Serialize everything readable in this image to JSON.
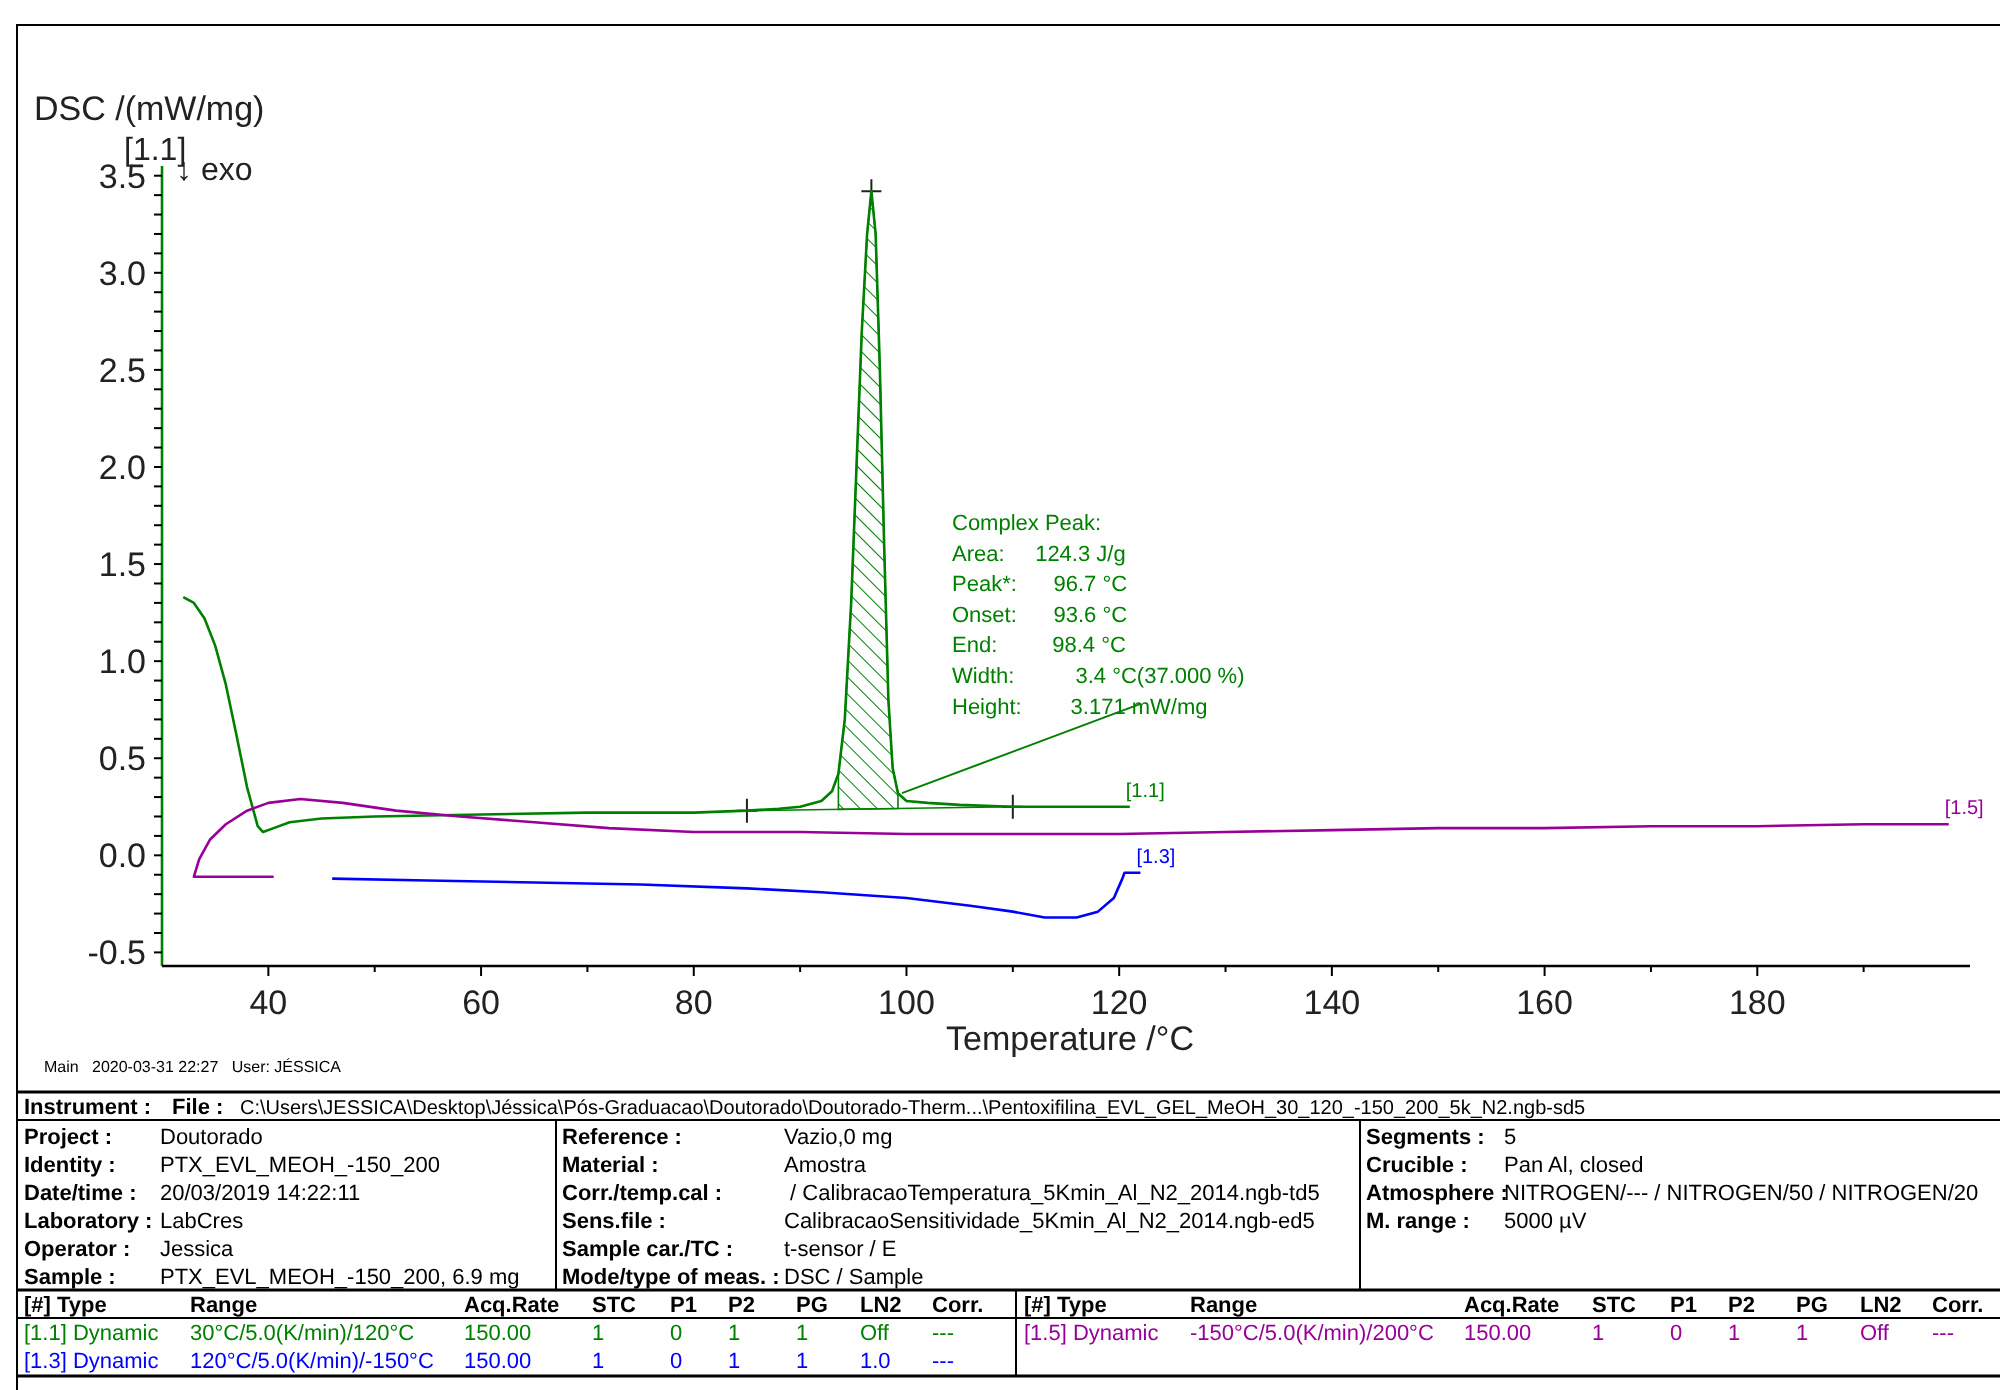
{
  "chart_data": {
    "type": "line",
    "xlabel": "Temperature /°C",
    "ylabel": "DSC /(mW/mg)",
    "xlim": [
      30,
      200
    ],
    "ylim": [
      -0.57,
      3.55
    ],
    "xticks": [
      40,
      {
        "value": 50,
        "label": null
      },
      60,
      {
        "value": 70,
        "label": null
      },
      80,
      {
        "value": 90,
        "label": null
      },
      100,
      {
        "value": 110,
        "label": null
      },
      120,
      {
        "value": 130,
        "label": null
      },
      140,
      {
        "value": 150,
        "label": null
      },
      160,
      {
        "value": 170,
        "label": null
      },
      180,
      {
        "value": 190,
        "label": null
      }
    ],
    "yticks": [
      -0.5,
      {
        "value": -0.4,
        "label": null
      },
      {
        "value": -0.3,
        "label": null
      },
      {
        "value": -0.2,
        "label": null
      },
      {
        "value": -0.1,
        "label": null
      },
      {
        "value": 0,
        "label": "0.0"
      },
      {
        "value": 0.1,
        "label": null
      },
      {
        "value": 0.2,
        "label": null
      },
      {
        "value": 0.3,
        "label": null
      },
      {
        "value": 0.4,
        "label": null
      },
      0.5,
      {
        "value": 0.6,
        "label": null
      },
      {
        "value": 0.7,
        "label": null
      },
      {
        "value": 0.8,
        "label": null
      },
      {
        "value": 0.9,
        "label": null
      },
      {
        "value": 1,
        "label": "1.0"
      },
      {
        "value": 1.1,
        "label": null
      },
      {
        "value": 1.2,
        "label": null
      },
      {
        "value": 1.3,
        "label": null
      },
      {
        "value": 1.4,
        "label": null
      },
      1.5,
      {
        "value": 1.6,
        "label": null
      },
      {
        "value": 1.7,
        "label": null
      },
      {
        "value": 1.8,
        "label": null
      },
      {
        "value": 1.9,
        "label": null
      },
      {
        "value": 2,
        "label": "2.0"
      },
      {
        "value": 2.1,
        "label": null
      },
      {
        "value": 2.2,
        "label": null
      },
      {
        "value": 2.3,
        "label": null
      },
      {
        "value": 2.4,
        "label": null
      },
      2.5,
      {
        "value": 2.6,
        "label": null
      },
      {
        "value": 2.7,
        "label": null
      },
      {
        "value": 2.8,
        "label": null
      },
      {
        "value": 2.9,
        "label": null
      },
      {
        "value": 3,
        "label": "3.0"
      },
      {
        "value": 3.1,
        "label": null
      },
      {
        "value": 3.2,
        "label": null
      },
      {
        "value": 3.3,
        "label": null
      },
      {
        "value": 3.4,
        "label": null
      },
      3.5
    ],
    "legend": false,
    "marker": "none",
    "line_style": "solid",
    "series": [
      {
        "name": "[1.1]",
        "color": "#008000",
        "x": [
          32,
          33,
          34,
          35,
          36,
          37,
          38,
          39,
          39.5,
          40.5,
          42,
          45,
          50,
          60,
          70,
          80,
          85,
          88,
          90,
          92,
          93,
          93.6,
          94.2,
          94.8,
          95.3,
          95.8,
          96.3,
          96.7,
          97.1,
          97.5,
          97.9,
          98.3,
          98.7,
          99.2,
          100,
          102,
          105,
          110,
          115,
          121
        ],
        "values": [
          1.33,
          1.3,
          1.22,
          1.08,
          0.88,
          0.62,
          0.35,
          0.15,
          0.12,
          0.14,
          0.17,
          0.19,
          0.2,
          0.21,
          0.22,
          0.22,
          0.23,
          0.24,
          0.25,
          0.28,
          0.33,
          0.42,
          0.7,
          1.3,
          2.0,
          2.7,
          3.2,
          3.42,
          3.2,
          2.5,
          1.6,
          0.8,
          0.45,
          0.32,
          0.28,
          0.27,
          0.26,
          0.25,
          0.25,
          0.25
        ]
      },
      {
        "name": "[1.3]",
        "color": "#0000ff",
        "x": [
          46,
          55,
          65,
          75,
          85,
          92,
          100,
          106,
          110,
          113,
          116,
          118,
          119.5,
          120.3,
          120.5,
          122
        ],
        "values": [
          -0.12,
          -0.13,
          -0.14,
          -0.15,
          -0.17,
          -0.19,
          -0.22,
          -0.26,
          -0.29,
          -0.32,
          -0.32,
          -0.29,
          -0.22,
          -0.12,
          -0.09,
          -0.09
        ]
      },
      {
        "name": "[1.5]",
        "color": "#990099",
        "x": [
          40.5,
          33,
          33.5,
          34.5,
          36,
          38,
          40,
          43,
          47,
          52,
          58,
          65,
          72,
          80,
          90,
          100,
          110,
          120,
          130,
          140,
          150,
          160,
          170,
          180,
          190,
          198
        ],
        "values": [
          -0.11,
          -0.11,
          -0.02,
          0.08,
          0.16,
          0.23,
          0.27,
          0.29,
          0.27,
          0.23,
          0.2,
          0.17,
          0.14,
          0.12,
          0.12,
          0.11,
          0.11,
          0.11,
          0.12,
          0.13,
          0.14,
          0.14,
          0.15,
          0.15,
          0.16,
          0.16
        ]
      }
    ],
    "annotations": [
      "[1.1]",
      "↓ exo",
      "Complex Peak:",
      "Area:     124.3 J/g",
      "Peak*:      96.7 °C",
      "Onset:      93.6 °C",
      "End:         98.4 °C",
      "Width:          3.4 °C(37.000 %)",
      {
        "text": "Height:        3.171 mW/mg",
        "x": 99.2,
        "y": 0.32
      },
      "Main   2020-03-31 22:27   User: JÉSSICA",
      "Instrument :",
      "File :",
      "C:\\Users\\JESSICA\\Desktop\\Jéssica\\Pós-Graduacao\\Doutorado\\Doutorado-Therm...\\Pentoxifilina_EVL_GEL_MeOH_30_120_-150_200_5k_N2.ngb-sd5",
      "Project :",
      "Doutorado",
      "Identity :",
      "PTX_EVL_MEOH_-150_200",
      "Date/time :",
      "20/03/2019 14:22:11",
      "Laboratory :",
      "LabCres",
      "Operator :",
      "Jessica",
      "Sample :",
      "PTX_EVL_MEOH_-150_200, 6.9 mg",
      "Reference :",
      "Vazio,0 mg",
      "Material :",
      "Amostra",
      "Corr./temp.cal :",
      " / CalibracaoTemperatura_5Kmin_Al_N2_2014.ngb-td5",
      "Sens.file :",
      "CalibracaoSensitividade_5Kmin_Al_N2_2014.ngb-ed5",
      "Sample car./TC :",
      "t-sensor / E",
      "Mode/type of meas. :",
      "DSC / Sample",
      "Segments :",
      "5",
      "Crucible :",
      "Pan Al, closed",
      "Atmosphere :",
      "NITROGEN/--- / NITROGEN/50 / NITROGEN/20",
      "M. range :",
      "5000 µV",
      "[#] Type",
      "Range",
      "Acq.Rate",
      "STC",
      "P1",
      "P2",
      "PG",
      "LN2",
      "Corr.",
      "[1.1] Dynamic",
      "30°C/5.0(K/min)/120°C",
      "150.00",
      "1",
      "0",
      "1",
      "1",
      "Off",
      "---",
      "[1.3] Dynamic",
      "120°C/5.0(K/min)/-150°C",
      "150.00",
      "1",
      "0",
      "1",
      "1",
      "1.0",
      "---",
      "[#] Type",
      "Range",
      "Acq.Rate",
      "STC",
      "P1",
      "P2",
      "PG",
      "LN2",
      "Corr.",
      "[1.5] Dynamic",
      "-150°C/5.0(K/min)/200°C",
      "150.00",
      "1",
      "0",
      "1",
      "1",
      "Off",
      "---"
    ]
  }
}
